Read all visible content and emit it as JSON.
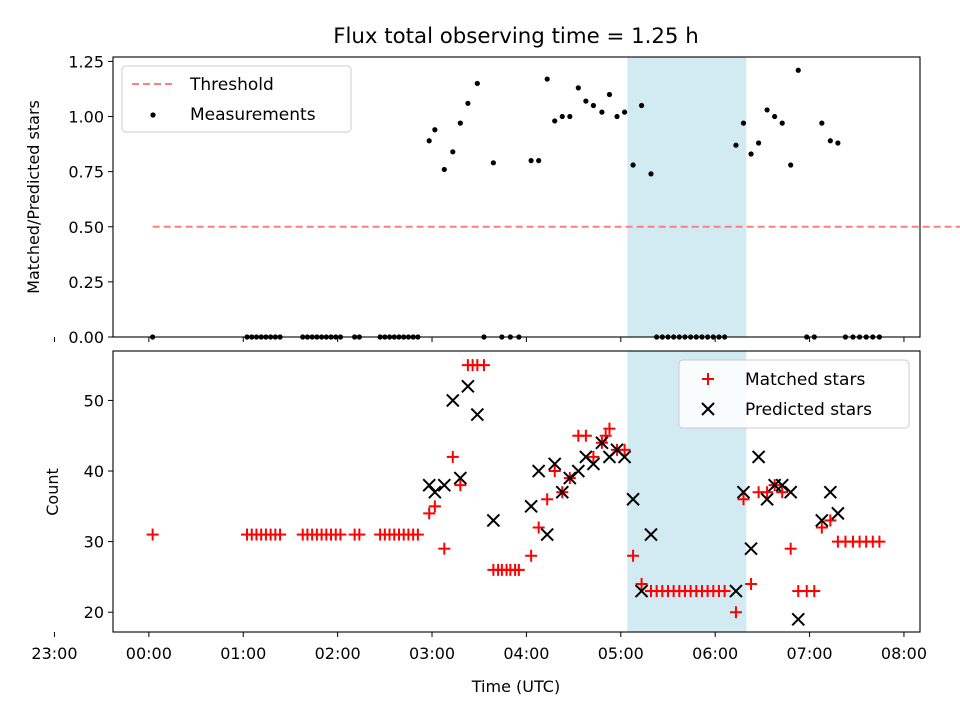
{
  "chart_data": [
    {
      "type": "scatter",
      "title": "Flux total observing time = 1.25 h",
      "xlabel": "",
      "ylabel": "Matched/Predicted stars",
      "xlim": [
        -0.38,
        8.17
      ],
      "ylim": [
        0,
        1.27
      ],
      "yticks": [
        0.0,
        0.25,
        0.5,
        0.75,
        1.0,
        1.25
      ],
      "ytick_labels": [
        "0.00",
        "0.25",
        "0.50",
        "0.75",
        "1.00",
        "1.25"
      ],
      "shaded_span": [
        5.07,
        6.33
      ],
      "shade_color": "#add8e6",
      "threshold": {
        "name": "Threshold",
        "value": 0.5,
        "x": [
          0.04,
          8.73
        ],
        "color": "#ff7f7f"
      },
      "series": [
        {
          "name": "Measurements",
          "color": "#000000",
          "x": [
            0.04,
            1.04,
            1.09,
            1.14,
            1.19,
            1.24,
            1.29,
            1.34,
            1.39,
            1.63,
            1.68,
            1.73,
            1.78,
            1.83,
            1.88,
            1.93,
            1.98,
            2.03,
            2.18,
            2.23,
            2.45,
            2.5,
            2.55,
            2.6,
            2.65,
            2.7,
            2.75,
            2.8,
            2.85,
            2.97,
            3.03,
            3.13,
            3.22,
            3.3,
            3.38,
            3.48,
            3.55,
            3.65,
            3.74,
            3.83,
            3.92,
            4.05,
            4.13,
            4.22,
            4.3,
            4.38,
            4.46,
            4.55,
            4.63,
            4.71,
            4.8,
            4.88,
            4.96,
            5.04,
            5.13,
            5.22,
            5.32,
            5.38,
            5.44,
            5.5,
            5.56,
            5.62,
            5.68,
            5.74,
            5.8,
            5.86,
            5.92,
            5.98,
            6.04,
            6.1,
            6.22,
            6.3,
            6.38,
            6.46,
            6.55,
            6.63,
            6.71,
            6.8,
            6.88,
            6.97,
            7.05,
            7.13,
            7.22,
            7.3,
            7.38,
            7.46,
            7.53,
            7.6,
            7.67,
            7.74
          ],
          "y": [
            0.0,
            0.0,
            0.0,
            0.0,
            0.0,
            0.0,
            0.0,
            0.0,
            0.0,
            0.0,
            0.0,
            0.0,
            0.0,
            0.0,
            0.0,
            0.0,
            0.0,
            0.0,
            0.0,
            0.0,
            0.0,
            0.0,
            0.0,
            0.0,
            0.0,
            0.0,
            0.0,
            0.0,
            0.0,
            0.89,
            0.94,
            0.76,
            0.84,
            0.97,
            1.06,
            1.15,
            0.0,
            0.79,
            0.0,
            0.0,
            0.0,
            0.8,
            0.8,
            1.17,
            0.98,
            1.0,
            1.0,
            1.13,
            1.07,
            1.05,
            1.02,
            1.1,
            1.0,
            1.02,
            0.78,
            1.05,
            0.74,
            0.0,
            0.0,
            0.0,
            0.0,
            0.0,
            0.0,
            0.0,
            0.0,
            0.0,
            0.0,
            0.0,
            0.0,
            0.0,
            0.87,
            0.97,
            0.83,
            0.88,
            1.03,
            1.0,
            0.97,
            0.78,
            1.21,
            0.0,
            0.0,
            0.97,
            0.89,
            0.88,
            0.0,
            0.0,
            0.0,
            0.0,
            0.0,
            0.0
          ]
        }
      ],
      "legend": {
        "placement": "top-left",
        "entries": [
          "Threshold",
          "Measurements"
        ]
      }
    },
    {
      "type": "scatter",
      "title": "",
      "xlabel": "Time (UTC)",
      "ylabel": "Count",
      "xlim": [
        -0.38,
        8.17
      ],
      "ylim": [
        17.2,
        57.0
      ],
      "yticks": [
        20,
        30,
        40,
        50
      ],
      "ytick_labels": [
        "20",
        "30",
        "40",
        "50"
      ],
      "xticks": [
        23,
        24,
        25,
        26,
        27,
        28,
        29,
        30,
        31,
        32
      ],
      "xtick_labels": [
        "23:00",
        "00:00",
        "01:00",
        "02:00",
        "03:00",
        "04:00",
        "05:00",
        "06:00",
        "07:00",
        "08:00"
      ],
      "shaded_span": [
        5.07,
        6.33
      ],
      "shade_color": "#add8e6",
      "series": [
        {
          "name": "Matched stars",
          "marker": "plus",
          "color": "#ff0000",
          "x": [
            0.04,
            1.04,
            1.09,
            1.14,
            1.19,
            1.24,
            1.29,
            1.34,
            1.39,
            1.63,
            1.68,
            1.73,
            1.78,
            1.83,
            1.88,
            1.93,
            1.98,
            2.03,
            2.18,
            2.23,
            2.45,
            2.5,
            2.55,
            2.6,
            2.65,
            2.7,
            2.75,
            2.8,
            2.85,
            2.97,
            3.03,
            3.13,
            3.22,
            3.3,
            3.38,
            3.43,
            3.48,
            3.55,
            3.65,
            3.7,
            3.74,
            3.79,
            3.83,
            3.88,
            3.92,
            4.05,
            4.13,
            4.22,
            4.3,
            4.38,
            4.46,
            4.55,
            4.63,
            4.71,
            4.8,
            4.84,
            4.88,
            4.96,
            5.04,
            5.13,
            5.22,
            5.32,
            5.38,
            5.44,
            5.5,
            5.56,
            5.62,
            5.68,
            5.74,
            5.8,
            5.86,
            5.92,
            5.98,
            6.04,
            6.1,
            6.22,
            6.3,
            6.38,
            6.46,
            6.55,
            6.63,
            6.71,
            6.8,
            6.88,
            6.97,
            7.05,
            7.13,
            7.22,
            7.3,
            7.38,
            7.46,
            7.53,
            7.6,
            7.67,
            7.74
          ],
          "y": [
            31,
            31,
            31,
            31,
            31,
            31,
            31,
            31,
            31,
            31,
            31,
            31,
            31,
            31,
            31,
            31,
            31,
            31,
            31,
            31,
            31,
            31,
            31,
            31,
            31,
            31,
            31,
            31,
            31,
            34,
            35,
            29,
            42,
            38,
            55,
            55,
            55,
            55,
            26,
            26,
            26,
            26,
            26,
            26,
            26,
            28,
            32,
            36,
            40,
            37,
            39,
            45,
            45,
            42,
            44,
            45,
            46,
            43,
            43,
            28,
            24,
            23,
            23,
            23,
            23,
            23,
            23,
            23,
            23,
            23,
            23,
            23,
            23,
            23,
            23,
            20,
            36,
            24,
            37,
            37,
            38,
            37,
            29,
            23,
            23,
            23,
            32,
            33,
            30,
            30,
            30,
            30,
            30,
            30,
            30
          ]
        },
        {
          "name": "Predicted stars",
          "marker": "x",
          "color": "#000000",
          "x": [
            2.97,
            3.03,
            3.13,
            3.22,
            3.3,
            3.38,
            3.48,
            3.65,
            4.05,
            4.13,
            4.22,
            4.3,
            4.38,
            4.46,
            4.55,
            4.63,
            4.71,
            4.8,
            4.88,
            4.96,
            5.04,
            5.13,
            5.22,
            5.32,
            6.22,
            6.3,
            6.38,
            6.46,
            6.55,
            6.63,
            6.71,
            6.8,
            6.88,
            7.13,
            7.22,
            7.3
          ],
          "y": [
            38,
            37,
            38,
            50,
            39,
            52,
            48,
            33,
            35,
            40,
            31,
            41,
            37,
            39,
            40,
            42,
            41,
            44,
            42,
            43,
            42,
            36,
            23,
            31,
            23,
            37,
            29,
            42,
            36,
            38,
            38,
            37,
            19,
            33,
            37,
            34
          ]
        }
      ],
      "legend": {
        "placement": "top-right",
        "entries": [
          "Matched stars",
          "Predicted stars"
        ]
      }
    }
  ]
}
